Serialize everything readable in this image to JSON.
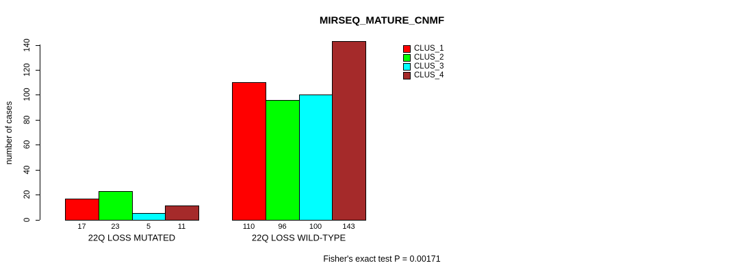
{
  "chart_data": {
    "type": "bar",
    "title": "MIRSEQ_MATURE_CNMF",
    "ylabel": "number of cases",
    "xlabel": "",
    "categories": [
      "22Q LOSS MUTATED",
      "22Q LOSS WILD-TYPE"
    ],
    "series": [
      {
        "name": "CLUS_1",
        "color": "#ff0000",
        "values": [
          17,
          110
        ]
      },
      {
        "name": "CLUS_2",
        "color": "#00ff00",
        "values": [
          23,
          96
        ]
      },
      {
        "name": "CLUS_3",
        "color": "#00ffff",
        "values": [
          5,
          100
        ]
      },
      {
        "name": "CLUS_4",
        "color": "#a52a2a",
        "values": [
          11,
          143
        ]
      }
    ],
    "ylim": [
      0,
      140
    ],
    "yticks": [
      0,
      20,
      40,
      60,
      80,
      100,
      120,
      140
    ],
    "bar_value_labels_shown": true,
    "grid": false,
    "legend_position": "top-right",
    "annotation": "Fisher's exact test P = 0.00171"
  }
}
